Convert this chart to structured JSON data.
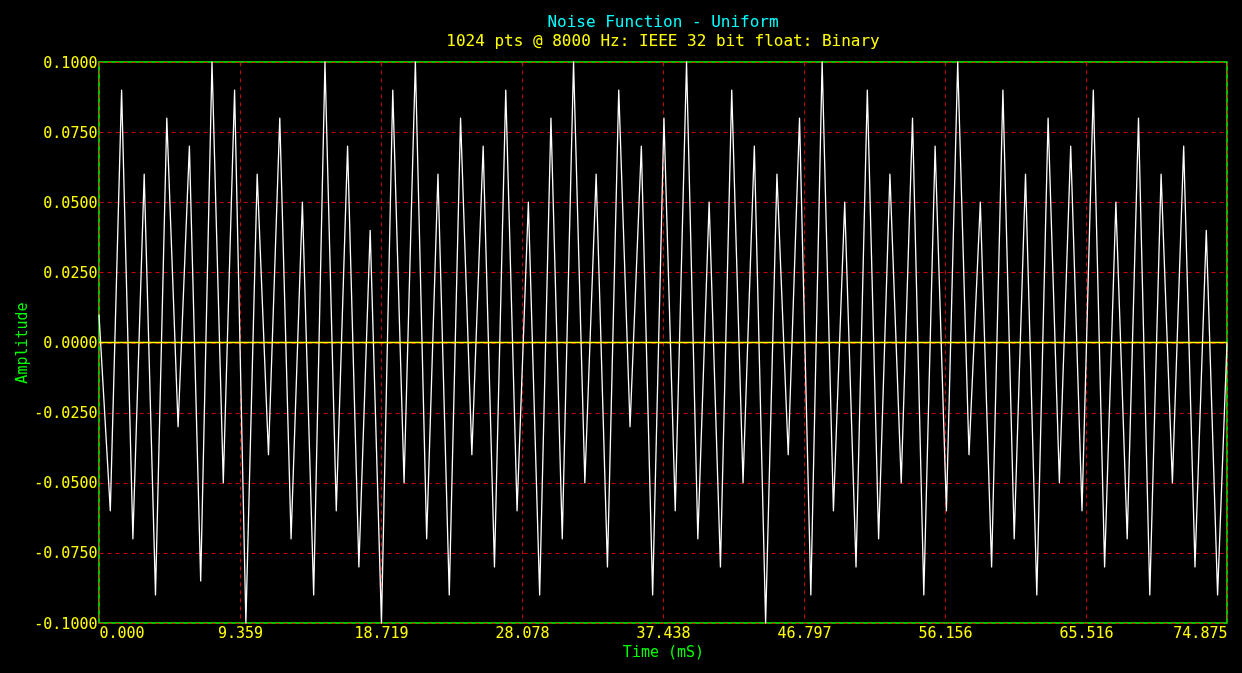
{
  "chart_data": {
    "type": "line",
    "title": "Noise Function - Uniform",
    "subtitle": "1024 pts @ 8000 Hz: IEEE 32 bit float: Binary",
    "xlabel": "Time (mS)",
    "ylabel": "Amplitude",
    "x": [
      0,
      0.75,
      1.5,
      2.25,
      3,
      3.75,
      4.5,
      5.25,
      6,
      6.75,
      7.5,
      8.25,
      9,
      9.75,
      10.5,
      11.25,
      12,
      12.75,
      13.5,
      14.25,
      15,
      15.75,
      16.5,
      17.25,
      18,
      18.75,
      19.5,
      20.25,
      21,
      21.75,
      22.5,
      23.25,
      24,
      24.75,
      25.5,
      26.25,
      27,
      27.75,
      28.5,
      29.25,
      30,
      30.75,
      31.5,
      32.25,
      33,
      33.75,
      34.5,
      35.25,
      36,
      36.75,
      37.5,
      38.25,
      39,
      39.75,
      40.5,
      41.25,
      42,
      42.75,
      43.5,
      44.25,
      45,
      45.75,
      46.5,
      47.25,
      48,
      48.75,
      49.5,
      50.25,
      51,
      51.75,
      52.5,
      53.25,
      54,
      54.75,
      55.5,
      56.25,
      57,
      57.75,
      58.5,
      59.25,
      60,
      60.75,
      61.5,
      62.25,
      63,
      63.75,
      64.5,
      65.25,
      66,
      66.75,
      67.5,
      68.25,
      69,
      69.75,
      70.5,
      71.25,
      72,
      72.75,
      73.5,
      74.25,
      74.875
    ],
    "series": [
      {
        "color": "#ffffff",
        "values": [
          0.01,
          -0.06,
          0.09,
          -0.07,
          0.06,
          -0.09,
          0.08,
          -0.03,
          0.07,
          -0.085,
          0.1,
          -0.05,
          0.09,
          -0.1,
          0.06,
          -0.04,
          0.08,
          -0.07,
          0.05,
          -0.09,
          0.1,
          -0.06,
          0.07,
          -0.08,
          0.04,
          -0.1,
          0.09,
          -0.05,
          0.1,
          -0.07,
          0.06,
          -0.09,
          0.08,
          -0.04,
          0.07,
          -0.08,
          0.09,
          -0.06,
          0.05,
          -0.09,
          0.08,
          -0.07,
          0.1,
          -0.05,
          0.06,
          -0.08,
          0.09,
          -0.03,
          0.07,
          -0.09,
          0.08,
          -0.06,
          0.1,
          -0.07,
          0.05,
          -0.08,
          0.09,
          -0.05,
          0.07,
          -0.1,
          0.06,
          -0.04,
          0.08,
          -0.09,
          0.1,
          -0.06,
          0.05,
          -0.08,
          0.09,
          -0.07,
          0.06,
          -0.05,
          0.08,
          -0.09,
          0.07,
          -0.06,
          0.1,
          -0.04,
          0.05,
          -0.08,
          0.09,
          -0.07,
          0.06,
          -0.09,
          0.08,
          -0.05,
          0.07,
          -0.06,
          0.09,
          -0.08,
          0.05,
          -0.07,
          0.08,
          -0.09,
          0.06,
          -0.05,
          0.07,
          -0.08,
          0.04,
          -0.09,
          0.0
        ]
      }
    ],
    "xlim": [
      0,
      74.875
    ],
    "xticks": [
      {
        "value": 0,
        "label": "0.000"
      },
      9.359,
      18.719,
      28.078,
      37.438,
      46.797,
      56.156,
      65.516,
      74.875
    ],
    "ylim": [
      -0.1,
      0.1
    ],
    "yticks": [
      {
        "value": -0.1,
        "label": "-0.1000"
      },
      {
        "value": -0.075,
        "label": "-0.0750"
      },
      {
        "value": -0.05,
        "label": "-0.0500"
      },
      {
        "value": -0.025,
        "label": "-0.0250"
      },
      {
        "value": 0,
        "label": "0.0000"
      },
      {
        "value": 0.025,
        "label": "0.0250"
      },
      {
        "value": 0.05,
        "label": "0.0500"
      },
      {
        "value": 0.075,
        "label": "0.0750"
      },
      {
        "value": 0.1,
        "label": "0.1000"
      }
    ],
    "ref_lines": [
      {
        "axis": "y",
        "value": 0,
        "color": "#ffff00"
      }
    ],
    "grid": true,
    "line_style": "solid",
    "marker": "none"
  }
}
